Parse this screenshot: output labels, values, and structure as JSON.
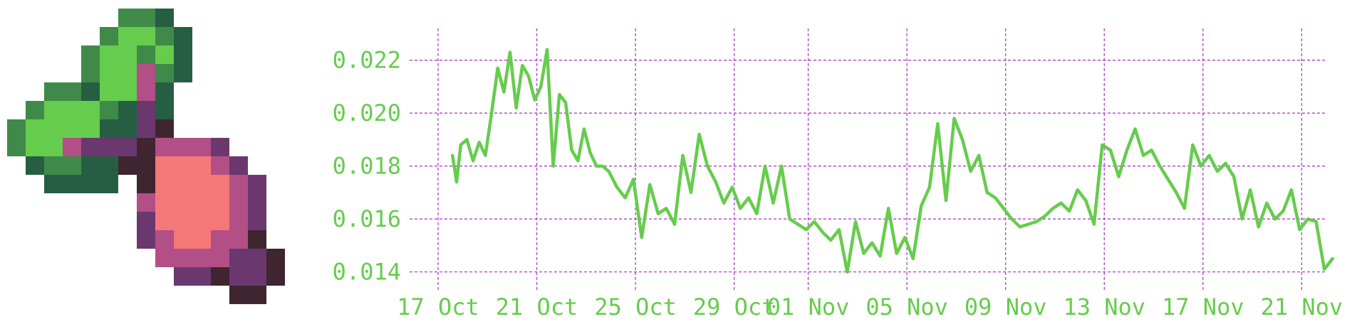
{
  "colors": {
    "line": "#66cc4d",
    "grid": "#b040c8",
    "tick_text": "#66cc4d",
    "leaf_dark": "#255e43",
    "leaf_mid": "#3f8a48",
    "leaf_light": "#66cc4d",
    "beet_flesh": "#f47878",
    "beet_skin": "#b24f86",
    "beet_dark": "#6a386e",
    "beet_shadow": "#3f252f"
  },
  "logo": {
    "icon": "pixel-beet-icon"
  },
  "chart_data": {
    "type": "line",
    "x_axis": {
      "type": "date",
      "ticks": [
        "17 Oct",
        "21 Oct",
        "25 Oct",
        "29 Oct",
        "01 Nov",
        "05 Nov",
        "09 Nov",
        "13 Nov",
        "17 Nov",
        "21 Nov"
      ],
      "xlim": [
        "2024-10-17",
        "2024-11-22"
      ]
    },
    "y_axis": {
      "ticks": [
        "0.014",
        "0.016",
        "0.018",
        "0.020",
        "0.022"
      ],
      "ylim": [
        0.0134,
        0.0232
      ]
    },
    "grid": true,
    "series": [
      {
        "x": [
          "2024-10-17T14:00",
          "2024-10-17T18:00",
          "2024-10-17T22:00",
          "2024-10-18T04:00",
          "2024-10-18T10:00",
          "2024-10-18T16:00",
          "2024-10-18T22:00",
          "2024-10-19T04:00",
          "2024-10-19T10:00",
          "2024-10-19T16:00",
          "2024-10-19T22:00",
          "2024-10-20T04:00",
          "2024-10-20T10:00",
          "2024-10-20T16:00",
          "2024-10-20T22:00",
          "2024-10-21T04:00",
          "2024-10-21T10:00",
          "2024-10-21T16:00",
          "2024-10-21T22:00",
          "2024-10-22T04:00",
          "2024-10-22T10:00",
          "2024-10-22T16:00",
          "2024-10-22T22:00",
          "2024-10-23T04:00",
          "2024-10-23T10:00",
          "2024-10-23T16:00",
          "2024-10-23T22:00",
          "2024-10-24T06:00",
          "2024-10-24T14:00",
          "2024-10-24T22:00",
          "2024-10-25T06:00",
          "2024-10-25T14:00",
          "2024-10-25T22:00",
          "2024-10-26T06:00",
          "2024-10-26T14:00",
          "2024-10-26T22:00",
          "2024-10-27T06:00",
          "2024-10-27T14:00",
          "2024-10-27T22:00",
          "2024-10-28T06:00",
          "2024-10-28T14:00",
          "2024-10-28T22:00",
          "2024-10-29T06:00",
          "2024-10-29T14:00",
          "2024-10-29T22:00",
          "2024-10-30T06:00",
          "2024-10-30T14:00",
          "2024-10-30T22:00",
          "2024-10-31T06:00",
          "2024-10-31T14:00",
          "2024-10-31T22:00",
          "2024-11-01T06:00",
          "2024-11-01T14:00",
          "2024-11-01T22:00",
          "2024-11-02T06:00",
          "2024-11-02T14:00",
          "2024-11-02T22:00",
          "2024-11-03T06:00",
          "2024-11-03T14:00",
          "2024-11-03T22:00",
          "2024-11-04T06:00",
          "2024-11-04T14:00",
          "2024-11-04T22:00",
          "2024-11-05T06:00",
          "2024-11-05T14:00",
          "2024-11-05T22:00",
          "2024-11-06T06:00",
          "2024-11-06T14:00",
          "2024-11-06T22:00",
          "2024-11-07T06:00",
          "2024-11-07T14:00",
          "2024-11-07T22:00",
          "2024-11-08T06:00",
          "2024-11-08T14:00",
          "2024-11-08T22:00",
          "2024-11-09T06:00",
          "2024-11-09T14:00",
          "2024-11-09T22:00",
          "2024-11-10T06:00",
          "2024-11-10T14:00",
          "2024-11-10T22:00",
          "2024-11-11T06:00",
          "2024-11-11T14:00",
          "2024-11-11T22:00",
          "2024-11-12T06:00",
          "2024-11-12T14:00",
          "2024-11-12T22:00",
          "2024-11-13T06:00",
          "2024-11-13T14:00",
          "2024-11-13T22:00",
          "2024-11-14T06:00",
          "2024-11-14T14:00",
          "2024-11-14T22:00",
          "2024-11-15T06:00",
          "2024-11-15T14:00",
          "2024-11-15T22:00",
          "2024-11-16T06:00",
          "2024-11-16T14:00",
          "2024-11-16T22:00",
          "2024-11-17T06:00",
          "2024-11-17T14:00",
          "2024-11-17T22:00",
          "2024-11-18T06:00",
          "2024-11-18T14:00",
          "2024-11-18T22:00",
          "2024-11-19T06:00",
          "2024-11-19T14:00",
          "2024-11-19T22:00",
          "2024-11-20T06:00",
          "2024-11-20T14:00",
          "2024-11-20T22:00",
          "2024-11-21T06:00",
          "2024-11-21T14:00",
          "2024-11-21T22:00",
          "2024-11-22T06:00"
        ],
        "y": [
          0.0184,
          0.0174,
          0.0188,
          0.019,
          0.0182,
          0.0189,
          0.0184,
          0.02,
          0.0217,
          0.0208,
          0.0223,
          0.0202,
          0.0218,
          0.0214,
          0.0205,
          0.021,
          0.0224,
          0.018,
          0.0207,
          0.0204,
          0.0186,
          0.0182,
          0.0194,
          0.0185,
          0.018,
          0.018,
          0.0178,
          0.0172,
          0.0168,
          0.0175,
          0.0153,
          0.0173,
          0.0162,
          0.0164,
          0.0158,
          0.0184,
          0.017,
          0.0192,
          0.018,
          0.0174,
          0.0166,
          0.0172,
          0.0164,
          0.0168,
          0.0162,
          0.018,
          0.0166,
          0.018,
          0.016,
          0.0158,
          0.0156,
          0.0159,
          0.0155,
          0.0152,
          0.0156,
          0.014,
          0.0159,
          0.0147,
          0.0151,
          0.0146,
          0.0164,
          0.0147,
          0.0153,
          0.0145,
          0.0165,
          0.0172,
          0.0196,
          0.0167,
          0.0198,
          0.019,
          0.0178,
          0.0184,
          0.017,
          0.0168,
          0.0164,
          0.016,
          0.0157,
          0.0158,
          0.0159,
          0.0161,
          0.0164,
          0.0166,
          0.0163,
          0.0171,
          0.0167,
          0.0158,
          0.0188,
          0.0186,
          0.0176,
          0.0186,
          0.0194,
          0.0184,
          0.0186,
          0.018,
          0.0175,
          0.017,
          0.0164,
          0.0188,
          0.018,
          0.0184,
          0.0178,
          0.0181,
          0.0176,
          0.016,
          0.0171,
          0.0157,
          0.0166,
          0.016,
          0.0163,
          0.0171,
          0.0156,
          0.016,
          0.0159,
          0.0141,
          0.0145
        ]
      }
    ]
  }
}
